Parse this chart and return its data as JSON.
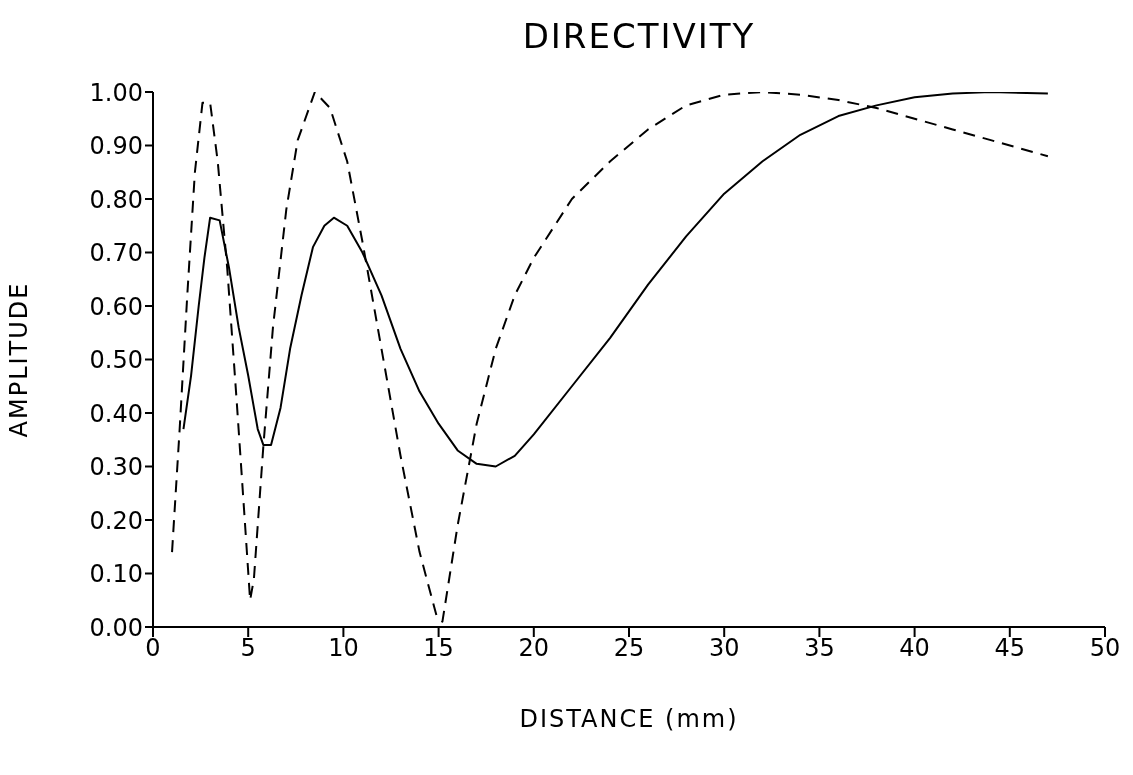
{
  "chart_data": {
    "type": "line",
    "title": "DIRECTIVITY",
    "xlabel": "DISTANCE (mm)",
    "ylabel": "AMPLITUDE",
    "xlim": [
      0,
      50
    ],
    "xticks": [
      0,
      5,
      10,
      15,
      20,
      25,
      30,
      35,
      40,
      45,
      50
    ],
    "ylim": [
      0,
      1
    ],
    "yticks": [
      {
        "value": 0,
        "label": "0.00"
      },
      {
        "value": 0.1,
        "label": "0.10"
      },
      {
        "value": 0.2,
        "label": "0.20"
      },
      {
        "value": 0.3,
        "label": "0.30"
      },
      {
        "value": 0.4,
        "label": "0.40"
      },
      {
        "value": 0.5,
        "label": "0.50"
      },
      {
        "value": 0.6,
        "label": "0.60"
      },
      {
        "value": 0.7,
        "label": "0.70"
      },
      {
        "value": 0.8,
        "label": "0.80"
      },
      {
        "value": 0.9,
        "label": "0.90"
      },
      {
        "value": 1,
        "label": "1.00"
      }
    ],
    "marker": "none",
    "series": [
      {
        "color": "#000000",
        "line_style": "solid",
        "x": [
          1.6,
          2.0,
          2.4,
          2.7,
          3.0,
          3.5,
          4.0,
          4.5,
          5.0,
          5.5,
          5.8,
          6.2,
          6.7,
          7.2,
          7.8,
          8.4,
          9.0,
          9.5,
          10.2,
          11,
          12,
          13,
          14,
          15,
          16,
          17,
          18,
          19,
          20,
          22,
          24,
          26,
          28,
          30,
          32,
          34,
          36,
          38,
          40,
          42,
          44,
          47
        ],
        "values": [
          0.37,
          0.47,
          0.6,
          0.69,
          0.765,
          0.76,
          0.67,
          0.56,
          0.47,
          0.37,
          0.34,
          0.34,
          0.41,
          0.52,
          0.62,
          0.71,
          0.75,
          0.765,
          0.75,
          0.7,
          0.62,
          0.52,
          0.44,
          0.38,
          0.33,
          0.305,
          0.3,
          0.32,
          0.36,
          0.45,
          0.54,
          0.64,
          0.73,
          0.81,
          0.87,
          0.92,
          0.955,
          0.975,
          0.99,
          0.997,
          1.0,
          0.997
        ]
      },
      {
        "color": "#000000",
        "line_style": "dashed",
        "x": [
          1.0,
          1.4,
          1.8,
          2.2,
          2.6,
          3.0,
          3.4,
          3.9,
          4.4,
          4.8,
          5.1,
          5.3,
          5.8,
          6.3,
          7.0,
          7.6,
          8.5,
          9.3,
          10.2,
          11,
          12,
          13,
          14,
          14.9,
          15.2,
          16,
          17,
          18,
          19,
          20,
          22,
          24,
          26,
          28,
          30,
          32,
          34,
          36,
          38,
          40,
          42,
          44,
          47
        ],
        "values": [
          0.14,
          0.37,
          0.62,
          0.85,
          0.98,
          0.98,
          0.87,
          0.67,
          0.42,
          0.21,
          0.05,
          0.09,
          0.34,
          0.56,
          0.78,
          0.91,
          1.0,
          0.97,
          0.87,
          0.72,
          0.52,
          0.32,
          0.14,
          0.02,
          0.01,
          0.19,
          0.38,
          0.52,
          0.62,
          0.69,
          0.8,
          0.87,
          0.93,
          0.975,
          0.995,
          1.0,
          0.995,
          0.985,
          0.97,
          0.95,
          0.93,
          0.91,
          0.88
        ]
      }
    ]
  }
}
